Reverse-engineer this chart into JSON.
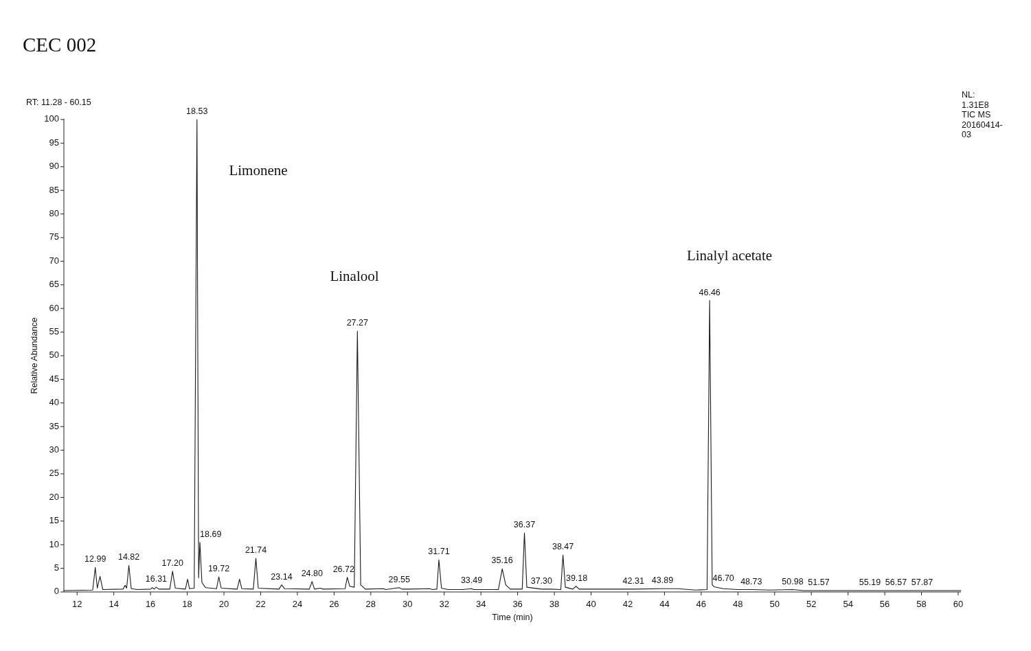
{
  "chart_data": {
    "type": "line",
    "title": "CEC 002",
    "xlabel": "Time (min)",
    "ylabel": "Relative Abundance",
    "xlim": [
      11.28,
      60.15
    ],
    "ylim": [
      0,
      100
    ],
    "xticks": [
      12,
      14,
      16,
      18,
      20,
      22,
      24,
      26,
      28,
      30,
      32,
      34,
      36,
      38,
      40,
      42,
      44,
      46,
      48,
      50,
      52,
      54,
      56,
      58,
      60
    ],
    "yticks": [
      0,
      5,
      10,
      15,
      20,
      25,
      30,
      35,
      40,
      45,
      50,
      55,
      60,
      65,
      70,
      75,
      80,
      85,
      90,
      95,
      100
    ],
    "x": [
      11.28,
      12.85,
      12.99,
      13.1,
      13.25,
      13.4,
      14.5,
      14.62,
      14.7,
      14.82,
      14.95,
      15.3,
      16.0,
      16.1,
      16.2,
      16.31,
      16.45,
      17.05,
      17.2,
      17.35,
      17.9,
      18.02,
      18.12,
      18.38,
      18.53,
      18.62,
      18.69,
      18.8,
      19.0,
      19.6,
      19.72,
      19.85,
      20.72,
      20.85,
      20.97,
      21.6,
      21.74,
      21.87,
      23.0,
      23.14,
      23.3,
      24.65,
      24.8,
      24.93,
      25.25,
      25.4,
      26.6,
      26.72,
      26.85,
      27.1,
      27.27,
      27.45,
      27.7,
      28.7,
      28.8,
      29.55,
      29.7,
      30.1,
      31.2,
      31.35,
      31.6,
      31.71,
      31.85,
      32.2,
      33.0,
      33.49,
      33.6,
      34.95,
      35.16,
      35.35,
      35.6,
      36.25,
      36.37,
      36.5,
      37.3,
      37.8,
      38.35,
      38.47,
      38.6,
      39.0,
      39.18,
      39.35,
      40.8,
      42.31,
      43.89,
      44.7,
      45.7,
      46.32,
      46.46,
      46.6,
      46.7,
      47.2,
      48.0,
      48.73,
      49.8,
      50.98,
      51.57,
      55.19,
      56.57,
      57.87,
      60.15
    ],
    "series": [
      {
        "color": "#1a1a1a",
        "values": [
          0.3,
          0.4,
          5.2,
          0.8,
          3.3,
          0.5,
          0.6,
          1.4,
          0.8,
          5.6,
          0.7,
          0.5,
          0.6,
          0.9,
          0.6,
          1.0,
          0.6,
          0.6,
          4.4,
          0.8,
          0.6,
          2.7,
          0.7,
          0.8,
          100,
          3.0,
          10.5,
          2.0,
          0.9,
          0.7,
          3.2,
          0.8,
          0.6,
          2.7,
          0.7,
          0.6,
          7.1,
          0.8,
          0.6,
          1.5,
          0.7,
          0.6,
          2.2,
          0.6,
          0.8,
          0.6,
          0.7,
          3.1,
          1.2,
          1.0,
          55.2,
          1.5,
          0.6,
          0.7,
          0.5,
          0.9,
          0.6,
          0.6,
          0.7,
          0.5,
          0.6,
          6.8,
          0.8,
          0.5,
          0.5,
          0.7,
          0.5,
          0.5,
          4.9,
          1.5,
          0.6,
          0.6,
          12.5,
          1.0,
          0.6,
          0.6,
          0.5,
          7.8,
          1.0,
          0.6,
          1.2,
          0.6,
          0.6,
          0.6,
          0.7,
          0.7,
          0.4,
          0.5,
          61.7,
          1.5,
          1.1,
          0.7,
          0.5,
          0.5,
          0.4,
          0.5,
          0.3,
          0.3,
          0.3,
          0.3,
          0.3
        ]
      }
    ],
    "annotations": [
      "RT: 11.28 - 60.15",
      "NL:\n1.31E8\nTIC MS\n20160414-\n03",
      "Limonene",
      "Linalool",
      "Linalyl acetate",
      {
        "text": "12.99",
        "x": 12.99,
        "y": 5.2
      },
      {
        "text": "14.82",
        "x": 14.82,
        "y": 5.6
      },
      {
        "text": "16.31",
        "x": 16.31,
        "y": 1.0
      },
      {
        "text": "17.20",
        "x": 17.2,
        "y": 4.4
      },
      {
        "text": "18.53",
        "x": 18.53,
        "y": 100
      },
      {
        "text": "18.69",
        "x": 18.69,
        "y": 10.5
      },
      {
        "text": "19.72",
        "x": 19.72,
        "y": 3.2
      },
      {
        "text": "21.74",
        "x": 21.74,
        "y": 7.1
      },
      {
        "text": "23.14",
        "x": 23.14,
        "y": 1.5
      },
      {
        "text": "24.80",
        "x": 24.8,
        "y": 2.2
      },
      {
        "text": "26.72",
        "x": 26.72,
        "y": 3.1
      },
      {
        "text": "27.27",
        "x": 27.27,
        "y": 55.2
      },
      {
        "text": "29.55",
        "x": 29.55,
        "y": 0.9
      },
      {
        "text": "31.71",
        "x": 31.71,
        "y": 6.8
      },
      {
        "text": "33.49",
        "x": 33.49,
        "y": 0.7
      },
      {
        "text": "35.16",
        "x": 35.16,
        "y": 4.9
      },
      {
        "text": "36.37",
        "x": 36.37,
        "y": 12.5
      },
      {
        "text": "37.30",
        "x": 37.3,
        "y": 0.6
      },
      {
        "text": "38.47",
        "x": 38.47,
        "y": 7.8
      },
      {
        "text": "39.18",
        "x": 39.18,
        "y": 1.2
      },
      {
        "text": "42.31",
        "x": 42.31,
        "y": 0.6
      },
      {
        "text": "43.89",
        "x": 43.89,
        "y": 0.7
      },
      {
        "text": "46.46",
        "x": 46.46,
        "y": 61.7
      },
      {
        "text": "46.70",
        "x": 46.7,
        "y": 1.1
      },
      {
        "text": "48.73",
        "x": 48.73,
        "y": 0.5
      },
      {
        "text": "50.98",
        "x": 50.98,
        "y": 0.5
      },
      {
        "text": "51.57",
        "x": 51.57,
        "y": 0.3
      },
      {
        "text": "55.19",
        "x": 55.19,
        "y": 0.3
      },
      {
        "text": "56.57",
        "x": 56.57,
        "y": 0.3
      },
      {
        "text": "57.87",
        "x": 57.87,
        "y": 0.3
      }
    ]
  }
}
